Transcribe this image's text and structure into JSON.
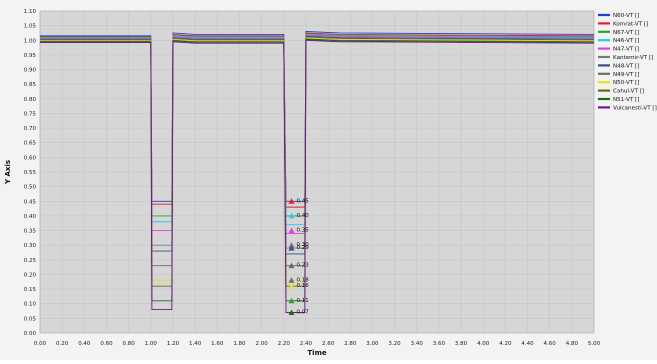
{
  "chart_data": {
    "type": "line",
    "xlabel": "Time",
    "ylabel": "Y Axis",
    "xlim": [
      0.0,
      5.0
    ],
    "ylim": [
      0.0,
      1.1
    ],
    "x_ticks": [
      "0.00",
      "0.20",
      "0.40",
      "0.60",
      "0.80",
      "1.00",
      "1.20",
      "1.40",
      "1.60",
      "1.80",
      "2.00",
      "2.20",
      "2.40",
      "2.60",
      "2.80",
      "3.00",
      "3.20",
      "3.40",
      "3.60",
      "3.80",
      "4.00",
      "4.20",
      "4.40",
      "4.60",
      "4.80",
      "5.00"
    ],
    "y_ticks": [
      "0.00",
      "0.05",
      "0.10",
      "0.15",
      "0.20",
      "0.25",
      "0.30",
      "0.35",
      "0.40",
      "0.45",
      "0.50",
      "0.55",
      "0.60",
      "0.65",
      "0.70",
      "0.75",
      "0.80",
      "0.85",
      "0.90",
      "0.95",
      "1.00",
      "1.05",
      "1.10"
    ],
    "grid": true,
    "legend_position": "right",
    "series": [
      {
        "name": "N60-VT []",
        "color": "#1f3fd0",
        "pre": 1.015,
        "d1": 0.45,
        "d2": 0.45,
        "post": 1.02
      },
      {
        "name": "Komrat-VT []",
        "color": "#e0202a",
        "pre": 1.012,
        "d1": 0.44,
        "d2": 0.43,
        "post": 1.015
      },
      {
        "name": "N67-VT []",
        "color": "#2ca02c",
        "pre": 1.01,
        "d1": 0.4,
        "d2": 0.4,
        "post": 1.012
      },
      {
        "name": "N46-VT []",
        "color": "#22ccee",
        "pre": 1.008,
        "d1": 0.38,
        "d2": 0.37,
        "post": 1.01
      },
      {
        "name": "N47-VT []",
        "color": "#e040e0",
        "pre": 1.006,
        "d1": 0.35,
        "d2": 0.34,
        "post": 1.008
      },
      {
        "name": "Kantemir-VT []",
        "color": "#7a7a7a",
        "pre": 1.004,
        "d1": 0.3,
        "d2": 0.29,
        "post": 1.005
      },
      {
        "name": "N48-VT []",
        "color": "#3a4f8a",
        "pre": 1.002,
        "d1": 0.28,
        "d2": 0.27,
        "post": 1.003
      },
      {
        "name": "N49-VT []",
        "color": "#6a6a6a",
        "pre": 1.0,
        "d1": 0.23,
        "d2": 0.23,
        "post": 1.0
      },
      {
        "name": "N50-VT []",
        "color": "#e8e020",
        "pre": 0.998,
        "d1": 0.18,
        "d2": 0.18,
        "post": 0.998
      },
      {
        "name": "Cahul-VT []",
        "color": "#6b6b10",
        "pre": 0.996,
        "d1": 0.16,
        "d2": 0.16,
        "post": 0.995
      },
      {
        "name": "N51-VT []",
        "color": "#1a6b1a",
        "pre": 0.994,
        "d1": 0.11,
        "d2": 0.11,
        "post": 0.993
      },
      {
        "name": "Vulcanesti-VT []",
        "color": "#6a1a8a",
        "pre": 0.992,
        "d1": 0.08,
        "d2": 0.07,
        "post": 0.99
      }
    ],
    "events": [
      {
        "start": 1.0,
        "end": 1.2
      },
      {
        "start": 2.2,
        "end": 2.4
      }
    ],
    "annotations": [
      {
        "x": 2.27,
        "y": 0.45,
        "text": "0.45",
        "color": "#e0202a"
      },
      {
        "x": 2.27,
        "y": 0.4,
        "text": "0.40",
        "color": "#22ccee"
      },
      {
        "x": 2.27,
        "y": 0.35,
        "text": "0.35",
        "color": "#e040e0"
      },
      {
        "x": 2.27,
        "y": 0.3,
        "text": "0.30",
        "color": "#7a7a7a"
      },
      {
        "x": 2.27,
        "y": 0.29,
        "text": "0.29",
        "color": "#3a4f8a"
      },
      {
        "x": 2.27,
        "y": 0.23,
        "text": "0.23",
        "color": "#6a6a6a"
      },
      {
        "x": 2.27,
        "y": 0.18,
        "text": "0.18",
        "color": "#6a6a6a"
      },
      {
        "x": 2.27,
        "y": 0.16,
        "text": "0.16",
        "color": "#e8e020"
      },
      {
        "x": 2.27,
        "y": 0.11,
        "text": "0.11",
        "color": "#2ca02c"
      },
      {
        "x": 2.27,
        "y": 0.07,
        "text": "0.07",
        "color": "#1a6b1a"
      }
    ]
  }
}
